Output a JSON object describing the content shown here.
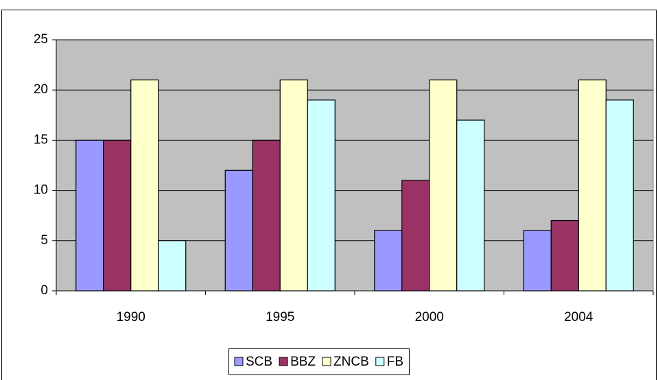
{
  "chart_data": {
    "type": "bar",
    "categories": [
      "1990",
      "1995",
      "2000",
      "2004"
    ],
    "series": [
      {
        "name": "SCB",
        "color": "#9999ff",
        "values": [
          15,
          12,
          6,
          6
        ]
      },
      {
        "name": "BBZ",
        "color": "#993366",
        "values": [
          15,
          15,
          11,
          7
        ]
      },
      {
        "name": "ZNCB",
        "color": "#ffffcc",
        "values": [
          21,
          21,
          21,
          21
        ]
      },
      {
        "name": "FB",
        "color": "#ccffff",
        "values": [
          5,
          19,
          17,
          19
        ]
      }
    ],
    "ylim": [
      0,
      25
    ],
    "yticks": [
      0,
      5,
      10,
      15,
      20,
      25
    ],
    "grid": true,
    "legend": "bottom",
    "plot_background": "#c0c0c0"
  }
}
